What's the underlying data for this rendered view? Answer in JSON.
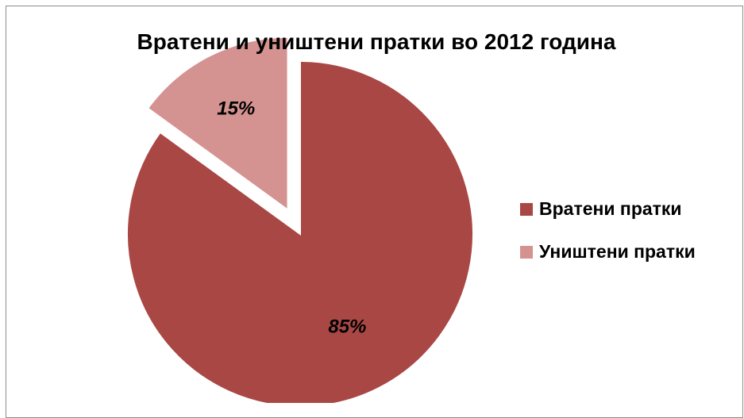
{
  "chart_data": {
    "type": "pie",
    "title": "Вратени и уништени пратки во 2012 година",
    "categories": [
      "Вратени пратки",
      "Уништени пратки"
    ],
    "values": [
      85,
      15
    ],
    "labels": [
      "85%",
      "15%"
    ],
    "colors": [
      "#a94745",
      "#d49391"
    ],
    "exploded": [
      false,
      true
    ],
    "legend": "right"
  }
}
